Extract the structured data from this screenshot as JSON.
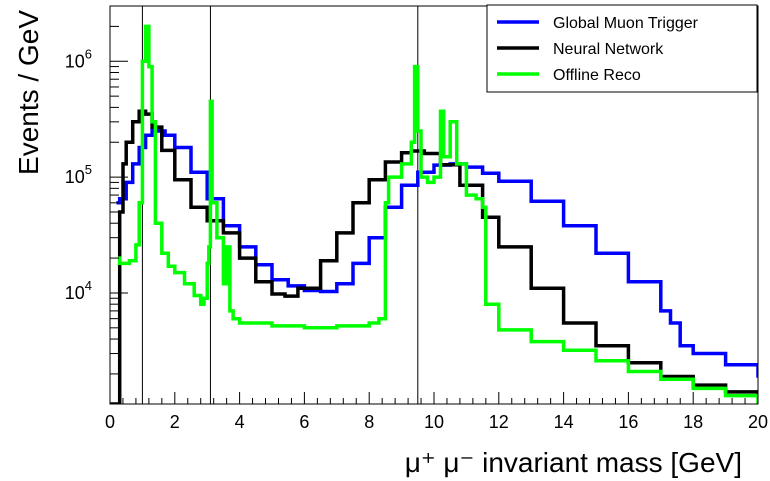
{
  "chart_data": {
    "type": "line",
    "title": "",
    "xlabel": "μ⁺ μ⁻ invariant mass [GeV]",
    "ylabel": "Events / GeV",
    "xlim": [
      0,
      20
    ],
    "ylim": [
      1100,
      3000000
    ],
    "yscale": "log",
    "grid": false,
    "legend_position": "top-right",
    "x_ticks": [
      0,
      2,
      4,
      6,
      8,
      10,
      12,
      14,
      16,
      18,
      20
    ],
    "x_tick_labels": [
      "0",
      "2",
      "4",
      "6",
      "8",
      "10",
      "12",
      "14",
      "16",
      "18",
      "20"
    ],
    "y_ticks": [
      10000,
      100000,
      1000000
    ],
    "y_tick_labels": [
      {
        "base": "10",
        "exp": "4"
      },
      {
        "base": "10",
        "exp": "5"
      },
      {
        "base": "10",
        "exp": "6"
      }
    ],
    "reference_lines_x": [
      1.0,
      3.1,
      9.5
    ],
    "series": [
      {
        "name": "Global Muon Trigger",
        "color": "#0000ff",
        "x": [
          0.2,
          0.3,
          0.5,
          0.7,
          0.9,
          1.1,
          1.3,
          1.5,
          1.7,
          2.0,
          2.5,
          3.0,
          3.5,
          4.0,
          4.5,
          5.0,
          5.5,
          6.0,
          6.5,
          7.0,
          7.5,
          8.0,
          8.5,
          9.0,
          9.5,
          10.0,
          10.5,
          11.0,
          11.5,
          12.0,
          13.0,
          14.0,
          15.0,
          16.0,
          17.0,
          17.3,
          17.6,
          18.0,
          19.0,
          20.0
        ],
        "y": [
          60000,
          65000,
          90000,
          130000,
          180000,
          230000,
          255000,
          250000,
          230000,
          180000,
          110000,
          65000,
          38000,
          25000,
          17500,
          13000,
          11500,
          10500,
          10300,
          12000,
          18000,
          30000,
          55000,
          85000,
          110000,
          127000,
          130000,
          122000,
          108000,
          92000,
          62000,
          38000,
          22000,
          12500,
          7000,
          5500,
          3500,
          3000,
          2400,
          1850
        ]
      },
      {
        "name": "Neural Network",
        "color": "#000000",
        "x": [
          0.0,
          0.1,
          0.2,
          0.3,
          0.4,
          0.5,
          0.7,
          0.9,
          1.1,
          1.3,
          1.6,
          2.0,
          2.5,
          3.0,
          3.5,
          4.0,
          4.5,
          5.0,
          5.4,
          5.8,
          6.5,
          7.0,
          7.5,
          8.0,
          8.5,
          9.0,
          9.3,
          9.7,
          10.2,
          10.8,
          11.5,
          12.0,
          13.0,
          14.0,
          15.0,
          16.0,
          17.0,
          18.0,
          19.0,
          20.0
        ],
        "y": [
          1100,
          1100,
          1100,
          50000,
          130000,
          200000,
          300000,
          370000,
          350000,
          270000,
          170000,
          95000,
          55000,
          42000,
          33000,
          20000,
          12500,
          9800,
          9400,
          11000,
          19000,
          33000,
          60000,
          95000,
          135000,
          162000,
          168000,
          160000,
          128000,
          85000,
          45000,
          25000,
          11000,
          5500,
          3500,
          2500,
          1900,
          1600,
          1400,
          1250
        ]
      },
      {
        "name": "Offline Reco",
        "color": "#00ff00",
        "x": [
          0.25,
          0.3,
          0.6,
          0.8,
          0.9,
          1.0,
          1.1,
          1.2,
          1.3,
          1.4,
          1.6,
          1.8,
          2.0,
          2.3,
          2.6,
          2.8,
          2.9,
          3.0,
          3.05,
          3.1,
          3.15,
          3.3,
          3.5,
          3.6,
          3.7,
          3.8,
          4.0,
          5.0,
          6.0,
          7.0,
          8.0,
          8.3,
          8.5,
          8.6,
          9.0,
          9.3,
          9.4,
          9.5,
          9.6,
          9.8,
          10.0,
          10.2,
          10.3,
          10.5,
          10.7,
          11.0,
          11.3,
          11.5,
          11.6,
          12.0,
          13.0,
          14.0,
          15.0,
          16.0,
          17.0,
          18.0,
          19.0,
          20.0
        ],
        "y": [
          20000,
          18000,
          19000,
          26000,
          60000,
          1000000,
          2000000,
          900000,
          300000,
          40000,
          22000,
          17000,
          15000,
          12000,
          9500,
          8000,
          9000,
          18000,
          25000,
          450000,
          60000,
          30000,
          12000,
          25000,
          7000,
          6000,
          5500,
          5200,
          5000,
          5200,
          5500,
          6000,
          60000,
          100000,
          130000,
          200000,
          900000,
          250000,
          100000,
          90000,
          100000,
          370000,
          150000,
          300000,
          130000,
          70000,
          65000,
          55000,
          8000,
          4800,
          3800,
          3200,
          2600,
          2100,
          1800,
          1500,
          1300,
          1100
        ]
      }
    ]
  }
}
